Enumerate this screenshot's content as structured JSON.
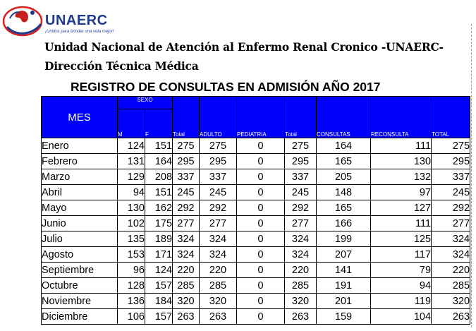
{
  "header": {
    "logo_name": "UNAERC",
    "logo_tagline": "¡Unidos para brindar una vida mejor!",
    "line1": "Unidad Nacional de Atención al Enfermo Renal Cronico -UNAERC-",
    "line2": "Dirección Técnica Médica"
  },
  "table": {
    "title": "REGISTRO DE CONSULTAS EN ADMISIÓN AÑO 2017",
    "headers": {
      "mes": "MES",
      "sexo": "SEXO",
      "m": "M",
      "f": "F",
      "total1": "Total",
      "adulto": "ADULTO",
      "pediatria": "PEDIATRIA",
      "total2": "Total",
      "consultas": "CONSULTAS",
      "reconsulta": "RECONSULTA",
      "total3": "TOTAL"
    },
    "rows": [
      [
        "Enero",
        "124",
        "151",
        "275",
        "275",
        "0",
        "275",
        "164",
        "111",
        "275"
      ],
      [
        "Febrero",
        "131",
        "164",
        "295",
        "295",
        "0",
        "295",
        "165",
        "130",
        "295"
      ],
      [
        "Marzo",
        "129",
        "208",
        "337",
        "337",
        "0",
        "337",
        "205",
        "132",
        "337"
      ],
      [
        "Abril",
        "94",
        "151",
        "245",
        "245",
        "0",
        "245",
        "148",
        "97",
        "245"
      ],
      [
        "Mayo",
        "130",
        "162",
        "292",
        "292",
        "0",
        "292",
        "165",
        "127",
        "292"
      ],
      [
        "Junio",
        "102",
        "175",
        "277",
        "277",
        "0",
        "277",
        "166",
        "111",
        "277"
      ],
      [
        "Julio",
        "135",
        "189",
        "324",
        "324",
        "0",
        "324",
        "199",
        "125",
        "324"
      ],
      [
        "Agosto",
        "153",
        "171",
        "324",
        "324",
        "0",
        "324",
        "207",
        "117",
        "324"
      ],
      [
        "Septiembre",
        "96",
        "124",
        "220",
        "220",
        "0",
        "220",
        "141",
        "79",
        "220"
      ],
      [
        "Octubre",
        "128",
        "157",
        "285",
        "285",
        "0",
        "285",
        "191",
        "94",
        "285"
      ],
      [
        "Noviembre",
        "136",
        "184",
        "320",
        "320",
        "0",
        "320",
        "201",
        "119",
        "320"
      ],
      [
        "Diciembre",
        "106",
        "157",
        "263",
        "263",
        "0",
        "263",
        "159",
        "104",
        "263"
      ]
    ]
  }
}
